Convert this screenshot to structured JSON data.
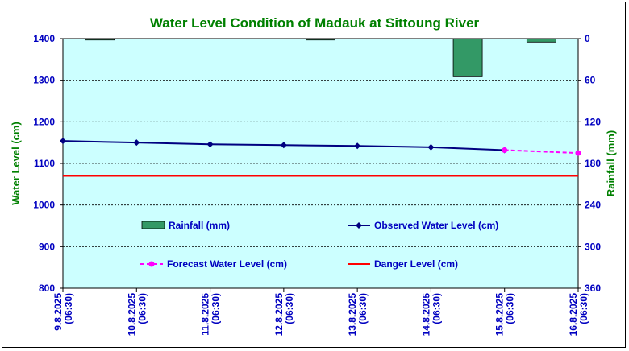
{
  "chart_data": {
    "type": "line",
    "title": "Water Level Condition of Madauk at Sittoung River",
    "ylabel": "Water Level (cm)",
    "y2label": "Rainfall (mm)",
    "ylim": [
      800,
      1400
    ],
    "y2lim": [
      0,
      360
    ],
    "y2_inverted": true,
    "yticks": [
      "1400",
      "1300",
      "1200",
      "1100",
      "1000",
      "900",
      "800"
    ],
    "y2ticks": [
      "0",
      "60",
      "120",
      "180",
      "240",
      "300",
      "360"
    ],
    "categories": [
      "9.8.2025 (06:30)",
      "10.8.2025 (06:30)",
      "11.8.2025 (06:30)",
      "12.8.2025 (06:30)",
      "13.8.2025 (06:30)",
      "14.8.2025 (06:30)",
      "15.8.2025 (06:30)",
      "16.8.2025 (06:30)"
    ],
    "grid": true,
    "series": [
      {
        "name": "Rainfall (mm)",
        "kind": "bar",
        "axis": "y2",
        "color": "#339966",
        "values": [
          2,
          null,
          null,
          2,
          null,
          55,
          5,
          null
        ]
      },
      {
        "name": "Observed Water Level (cm)",
        "kind": "line",
        "axis": "y",
        "color": "#000080",
        "marker": "diamond",
        "values": [
          1154,
          1150,
          1146,
          1144,
          1142,
          1139,
          1132,
          null
        ]
      },
      {
        "name": "Forecast Water Level (cm)",
        "kind": "line",
        "axis": "y",
        "color": "#ff00ff",
        "dashed": true,
        "marker": "circle",
        "values": [
          null,
          null,
          null,
          null,
          null,
          null,
          1132,
          1125
        ]
      },
      {
        "name": "Danger Level (cm)",
        "kind": "line",
        "axis": "y",
        "color": "#ff0000",
        "values": [
          1070,
          1070,
          1070,
          1070,
          1070,
          1070,
          1070,
          1070
        ]
      }
    ],
    "legend": "inside-plot"
  }
}
